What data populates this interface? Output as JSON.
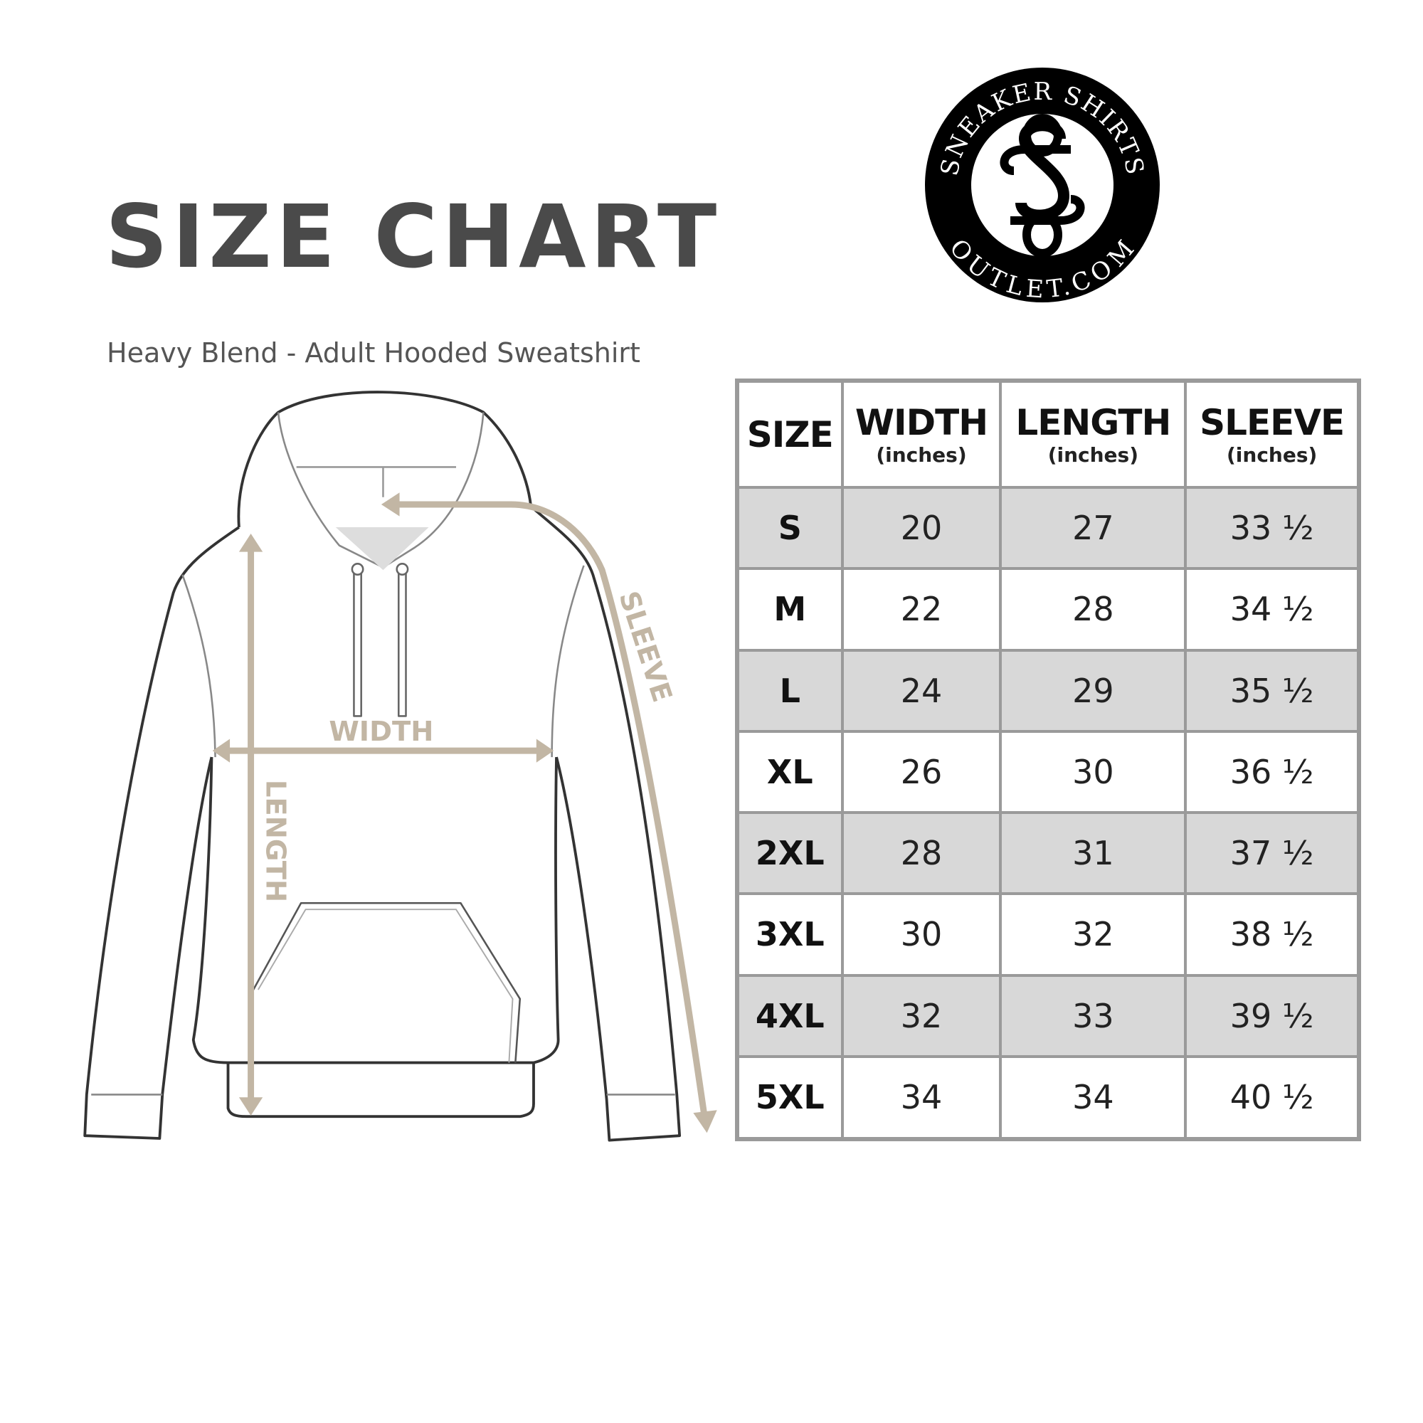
{
  "header": {
    "title": "SIZE CHART",
    "subtitle": "Heavy Blend - Adult Hooded Sweatshirt"
  },
  "logo": {
    "top_text": "SNEAKER SHIRTS",
    "bottom_text": "OUTLET.COM",
    "monogram": "SS"
  },
  "diagram": {
    "labels": {
      "width": "WIDTH",
      "length": "LENGTH",
      "sleeve": "SLEEVE"
    },
    "arrow_color": "#c2b6a4",
    "outline_color": "#333333"
  },
  "table": {
    "columns": [
      {
        "label": "SIZE",
        "unit": ""
      },
      {
        "label": "WIDTH",
        "unit": "(inches)"
      },
      {
        "label": "LENGTH",
        "unit": "(inches)"
      },
      {
        "label": "SLEEVE",
        "unit": "(inches)"
      }
    ],
    "rows": [
      [
        "S",
        "20",
        "27",
        "33 ½"
      ],
      [
        "M",
        "22",
        "28",
        "34 ½"
      ],
      [
        "L",
        "24",
        "29",
        "35 ½"
      ],
      [
        "XL",
        "26",
        "30",
        "36 ½"
      ],
      [
        "2XL",
        "28",
        "31",
        "37 ½"
      ],
      [
        "3XL",
        "30",
        "32",
        "38 ½"
      ],
      [
        "4XL",
        "32",
        "33",
        "39 ½"
      ],
      [
        "5XL",
        "34",
        "34",
        "40 ½"
      ]
    ],
    "stripe_color": "#d8d8d8",
    "border_color": "#9a9a9a"
  }
}
